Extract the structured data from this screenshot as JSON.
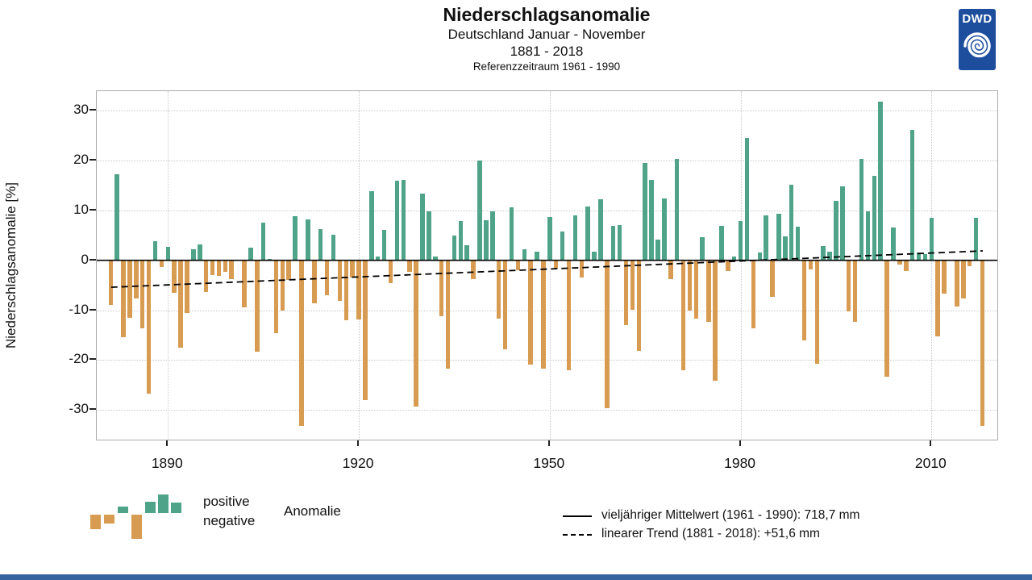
{
  "header": {
    "title": "Niederschlagsanomalie",
    "subtitle1": "Deutschland Januar - November",
    "subtitle2": "1881 - 2018",
    "subtitle3": "Referenzzeitraum 1961 - 1990"
  },
  "logo": {
    "text": "DWD"
  },
  "y_axis": {
    "label": "Niederschlagsanomalie [%]"
  },
  "legend_left": {
    "positive": "positive",
    "negative": "negative",
    "anomalie": "Anomalie"
  },
  "legend_right": {
    "mean": "vieljähriger Mittelwert (1961 - 1990): 718,7 mm",
    "trend": "linearer Trend (1881 - 2018): +51,6 mm"
  },
  "colors": {
    "positive": "#4ea389",
    "negative": "#d89b52",
    "mean_line": "#000000",
    "trend_line": "#000000",
    "grid": "#c9c9c9",
    "logo_blue": "#1d4e9e",
    "footer_blue": "#35639f"
  },
  "chart_data": {
    "type": "bar",
    "title": "Niederschlagsanomalie",
    "subtitle": "Deutschland Januar - November 1881 - 2018",
    "reference": "Referenzzeitraum 1961 - 1990",
    "xlabel": "",
    "ylabel": "Niederschlagsanomalie [%]",
    "ylim": [
      -35,
      33
    ],
    "grid": true,
    "x_ticks": [
      1890,
      1920,
      1950,
      1980,
      2010
    ],
    "y_ticks": [
      30,
      20,
      10,
      0,
      -10,
      -20,
      -30
    ],
    "mean_value": "718,7 mm",
    "trend_total": "+51,6 mm",
    "mean_line_pct": 0,
    "trend_line_pct": {
      "start_year": 1881,
      "start_value": -5.4,
      "end_year": 2018,
      "end_value": 1.9
    },
    "years": [
      1881,
      1882,
      1883,
      1884,
      1885,
      1886,
      1887,
      1888,
      1889,
      1890,
      1891,
      1892,
      1893,
      1894,
      1895,
      1896,
      1897,
      1898,
      1899,
      1900,
      1901,
      1902,
      1903,
      1904,
      1905,
      1906,
      1907,
      1908,
      1909,
      1910,
      1911,
      1912,
      1913,
      1914,
      1915,
      1916,
      1917,
      1918,
      1919,
      1920,
      1921,
      1922,
      1923,
      1924,
      1925,
      1926,
      1927,
      1928,
      1929,
      1930,
      1931,
      1932,
      1933,
      1934,
      1935,
      1936,
      1937,
      1938,
      1939,
      1940,
      1941,
      1942,
      1943,
      1944,
      1945,
      1946,
      1947,
      1948,
      1949,
      1950,
      1951,
      1952,
      1953,
      1954,
      1955,
      1956,
      1957,
      1958,
      1959,
      1960,
      1961,
      1962,
      1963,
      1964,
      1965,
      1966,
      1967,
      1968,
      1969,
      1970,
      1971,
      1972,
      1973,
      1974,
      1975,
      1976,
      1977,
      1978,
      1979,
      1980,
      1981,
      1982,
      1983,
      1984,
      1985,
      1986,
      1987,
      1988,
      1989,
      1990,
      1991,
      1992,
      1993,
      1994,
      1995,
      1996,
      1997,
      1998,
      1999,
      2000,
      2001,
      2002,
      2003,
      2004,
      2005,
      2006,
      2007,
      2008,
      2009,
      2010,
      2011,
      2012,
      2013,
      2014,
      2015,
      2016,
      2017,
      2018
    ],
    "values": [
      -9.0,
      17.2,
      -15.5,
      -11.6,
      -7.7,
      -13.6,
      -26.7,
      3.8,
      -1.3,
      2.7,
      -6.6,
      -17.5,
      -10.6,
      2.3,
      3.2,
      -6.3,
      -3.0,
      -3.1,
      -2.3,
      -3.7,
      0.0,
      -9.4,
      2.5,
      -18.3,
      7.6,
      0.3,
      -14.7,
      -10.1,
      -3.9,
      8.9,
      -33.2,
      8.2,
      -8.6,
      6.2,
      -7.0,
      5.1,
      -8.1,
      -12.0,
      -3.5,
      -11.9,
      -28.1,
      13.9,
      0.8,
      6.1,
      -4.6,
      15.9,
      16.1,
      -2.3,
      -29.3,
      13.4,
      9.8,
      0.8,
      -11.2,
      -21.7,
      4.9,
      7.9,
      3.0,
      -3.7,
      20.0,
      8.1,
      9.9,
      -11.7,
      -17.9,
      10.7,
      -2.0,
      2.2,
      -20.9,
      1.8,
      -21.7,
      8.7,
      -1.7,
      5.8,
      -22.1,
      9.0,
      -3.4,
      10.8,
      1.7,
      12.3,
      -29.7,
      6.9,
      7.0,
      -13.0,
      -9.9,
      -18.2,
      19.5,
      16.2,
      4.2,
      12.4,
      -3.7,
      20.4,
      -22.1,
      -10.1,
      -11.7,
      4.6,
      -12.3,
      -24.1,
      6.9,
      -2.2,
      0.8,
      7.9,
      24.6,
      -13.6,
      1.6,
      9.1,
      -7.3,
      9.4,
      4.8,
      15.2,
      6.8,
      -16.0,
      -1.9,
      -20.7,
      2.9,
      1.7,
      12.0,
      14.8,
      -10.3,
      -12.4,
      20.4,
      9.8,
      17.0,
      31.8,
      -23.3,
      6.6,
      -0.8,
      -2.2,
      26.1,
      1.5,
      1.3,
      8.6,
      -15.2,
      -6.7,
      0.0,
      -9.2,
      -7.6,
      -1.2,
      8.6,
      -33.3
    ]
  }
}
